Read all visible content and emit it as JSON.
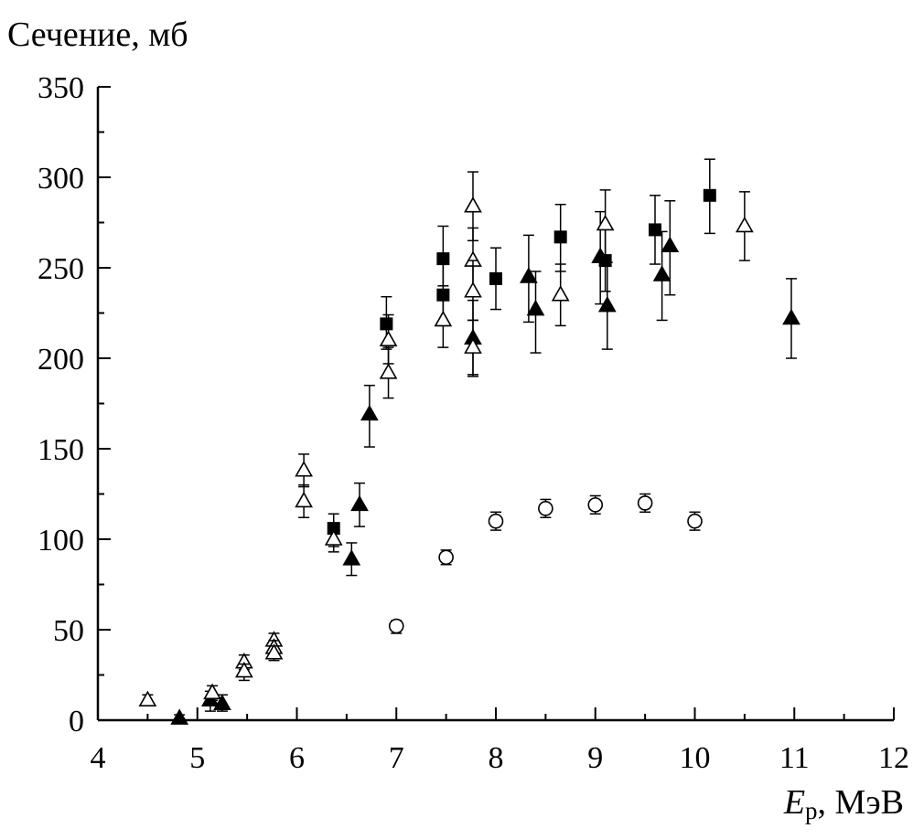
{
  "chart_data": {
    "type": "scatter",
    "ylabel": "Сечение, мб",
    "xlabel_main": "E",
    "xlabel_sub": "p",
    "xlabel_unit": ", МэВ",
    "xlim": [
      4,
      12
    ],
    "ylim": [
      0,
      350
    ],
    "xticks": [
      4,
      5,
      6,
      7,
      8,
      9,
      10,
      11,
      12
    ],
    "yticks": [
      0,
      50,
      100,
      150,
      200,
      250,
      300,
      350
    ],
    "grid": false,
    "series": [
      {
        "name": "filled squares",
        "marker": "square-filled",
        "points": [
          {
            "x": 6.37,
            "y": 106,
            "lo": 96,
            "hi": 114
          },
          {
            "x": 6.9,
            "y": 219,
            "lo": 205,
            "hi": 234
          },
          {
            "x": 7.47,
            "y": 255,
            "lo": 240,
            "hi": 273
          },
          {
            "x": 7.47,
            "y": 235,
            "lo": 218,
            "hi": 252
          },
          {
            "x": 8.0,
            "y": 244,
            "lo": 227,
            "hi": 261
          },
          {
            "x": 8.65,
            "y": 267,
            "lo": 248,
            "hi": 285
          },
          {
            "x": 9.1,
            "y": 254,
            "lo": 237,
            "hi": 272
          },
          {
            "x": 9.6,
            "y": 271,
            "lo": 252,
            "hi": 290
          },
          {
            "x": 10.15,
            "y": 290,
            "lo": 269,
            "hi": 310
          }
        ]
      },
      {
        "name": "filled triangles",
        "marker": "triangle-filled",
        "points": [
          {
            "x": 4.82,
            "y": 1,
            "lo": 0,
            "hi": 3
          },
          {
            "x": 5.13,
            "y": 11,
            "lo": 5,
            "hi": 16
          },
          {
            "x": 5.25,
            "y": 9,
            "lo": 5,
            "hi": 14
          },
          {
            "x": 6.55,
            "y": 89,
            "lo": 80,
            "hi": 98
          },
          {
            "x": 6.63,
            "y": 119,
            "lo": 107,
            "hi": 131
          },
          {
            "x": 6.73,
            "y": 169,
            "lo": 151,
            "hi": 185
          },
          {
            "x": 7.77,
            "y": 211,
            "lo": 190,
            "hi": 232
          },
          {
            "x": 8.33,
            "y": 245,
            "lo": 220,
            "hi": 268
          },
          {
            "x": 8.4,
            "y": 227,
            "lo": 203,
            "hi": 248
          },
          {
            "x": 9.05,
            "y": 256,
            "lo": 230,
            "hi": 281
          },
          {
            "x": 9.12,
            "y": 229,
            "lo": 205,
            "hi": 253
          },
          {
            "x": 9.67,
            "y": 246,
            "lo": 221,
            "hi": 270
          },
          {
            "x": 9.75,
            "y": 262,
            "lo": 235,
            "hi": 287
          },
          {
            "x": 10.97,
            "y": 222,
            "lo": 200,
            "hi": 244
          }
        ]
      },
      {
        "name": "open triangles",
        "marker": "triangle-open",
        "points": [
          {
            "x": 4.5,
            "y": 11,
            "lo": 8,
            "hi": 14
          },
          {
            "x": 5.15,
            "y": 15,
            "lo": 11,
            "hi": 19
          },
          {
            "x": 5.47,
            "y": 32,
            "lo": 28,
            "hi": 36
          },
          {
            "x": 5.47,
            "y": 27,
            "lo": 22,
            "hi": 31
          },
          {
            "x": 5.77,
            "y": 44,
            "lo": 39,
            "hi": 48
          },
          {
            "x": 5.77,
            "y": 40,
            "lo": 35,
            "hi": 44
          },
          {
            "x": 5.77,
            "y": 37,
            "lo": 33,
            "hi": 41
          },
          {
            "x": 6.07,
            "y": 138,
            "lo": 129,
            "hi": 147
          },
          {
            "x": 6.07,
            "y": 121,
            "lo": 112,
            "hi": 130
          },
          {
            "x": 6.37,
            "y": 100,
            "lo": 93,
            "hi": 107
          },
          {
            "x": 6.92,
            "y": 210,
            "lo": 197,
            "hi": 224
          },
          {
            "x": 6.92,
            "y": 192,
            "lo": 178,
            "hi": 206
          },
          {
            "x": 7.47,
            "y": 221,
            "lo": 206,
            "hi": 236
          },
          {
            "x": 7.77,
            "y": 284,
            "lo": 265,
            "hi": 303
          },
          {
            "x": 7.77,
            "y": 254,
            "lo": 237,
            "hi": 272
          },
          {
            "x": 7.77,
            "y": 237,
            "lo": 221,
            "hi": 254
          },
          {
            "x": 7.77,
            "y": 206,
            "lo": 191,
            "hi": 221
          },
          {
            "x": 8.65,
            "y": 235,
            "lo": 218,
            "hi": 252
          },
          {
            "x": 9.1,
            "y": 274,
            "lo": 255,
            "hi": 293
          },
          {
            "x": 10.5,
            "y": 273,
            "lo": 254,
            "hi": 292
          }
        ]
      },
      {
        "name": "open circles",
        "marker": "circle-open",
        "points": [
          {
            "x": 7.0,
            "y": 52,
            "lo": 48,
            "hi": 55
          },
          {
            "x": 7.5,
            "y": 90,
            "lo": 86,
            "hi": 94
          },
          {
            "x": 8.0,
            "y": 110,
            "lo": 105,
            "hi": 115
          },
          {
            "x": 8.5,
            "y": 117,
            "lo": 112,
            "hi": 122
          },
          {
            "x": 9.0,
            "y": 119,
            "lo": 114,
            "hi": 124
          },
          {
            "x": 9.5,
            "y": 120,
            "lo": 115,
            "hi": 125
          },
          {
            "x": 10.0,
            "y": 110,
            "lo": 105,
            "hi": 115
          }
        ]
      }
    ]
  }
}
